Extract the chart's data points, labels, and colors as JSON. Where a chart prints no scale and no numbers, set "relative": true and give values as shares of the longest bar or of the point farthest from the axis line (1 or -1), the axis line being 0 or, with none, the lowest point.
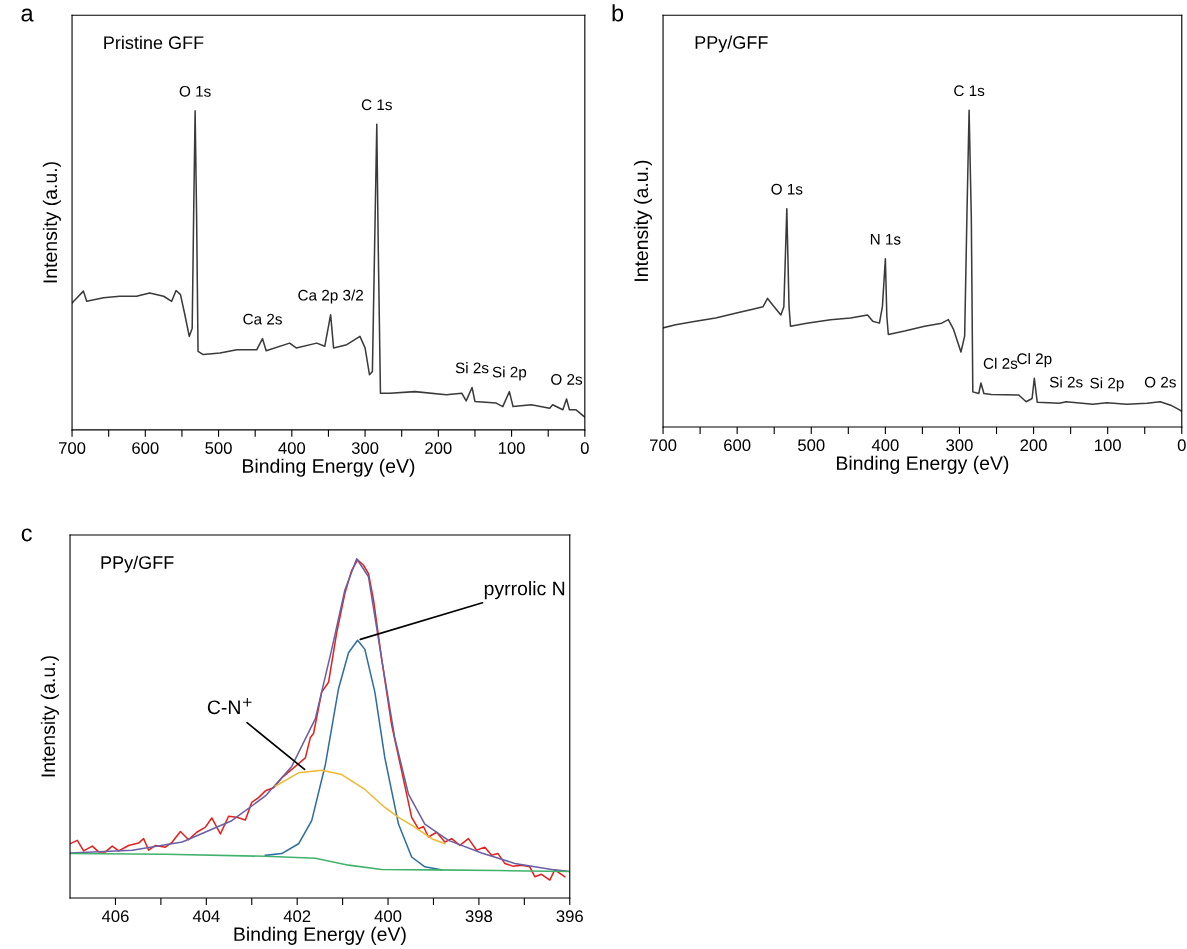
{
  "chart_data": [
    {
      "type": "line",
      "title": "a",
      "subtitle": "Pristine GFF",
      "xlabel": "Binding Energy (eV)",
      "ylabel": "Intensity (a.u.)",
      "relative": true,
      "xlim": [
        700,
        0
      ],
      "xticks": [
        700,
        {
          "value": 650,
          "label": null
        },
        600,
        {
          "value": 550,
          "label": null
        },
        500,
        {
          "value": 450,
          "label": null
        },
        400,
        {
          "value": 350,
          "label": null
        },
        300,
        {
          "value": 250,
          "label": null
        },
        200,
        {
          "value": 150,
          "label": null
        },
        100,
        {
          "value": 50,
          "label": null
        },
        0
      ],
      "tick_labels": "x",
      "series": [
        {
          "color": "#3a3a3a",
          "x": [
            700,
            684.5,
            680,
            657,
            635,
            612,
            594,
            575,
            564,
            558,
            552,
            546,
            540,
            536,
            534,
            532,
            530,
            528,
            521,
            498,
            475,
            448,
            440,
            435,
            403,
            394,
            366,
            355,
            347,
            343,
            325,
            307,
            300,
            294,
            290,
            287,
            284,
            282,
            279,
            266,
            232,
            189,
            168,
            162,
            154,
            150,
            121,
            112,
            103,
            98,
            73,
            48,
            44,
            30,
            25,
            21,
            12,
            0
          ],
          "values": [
            0.398,
            0.435,
            0.403,
            0.414,
            0.419,
            0.419,
            0.429,
            0.419,
            0.403,
            0.437,
            0.424,
            0.361,
            0.293,
            0.319,
            0.675,
            1.0,
            0.675,
            0.246,
            0.236,
            0.241,
            0.251,
            0.251,
            0.286,
            0.248,
            0.272,
            0.257,
            0.272,
            0.262,
            0.361,
            0.257,
            0.267,
            0.293,
            0.257,
            0.173,
            0.183,
            0.571,
            0.958,
            0.571,
            0.115,
            0.115,
            0.12,
            0.11,
            0.115,
            0.091,
            0.133,
            0.089,
            0.084,
            0.073,
            0.12,
            0.073,
            0.079,
            0.068,
            0.079,
            0.063,
            0.097,
            0.063,
            0.063,
            0.04
          ]
        }
      ],
      "annotations": [
        {
          "text": "O 1s",
          "x": 532,
          "y": 1.0
        },
        {
          "text": "Ca 2s",
          "x": 440,
          "y": 0.286
        },
        {
          "text": "Ca 2p 3/2",
          "x": 347,
          "y": 0.361
        },
        {
          "text": "C 1s",
          "x": 284,
          "y": 0.958
        },
        {
          "text": "Si 2s",
          "x": 154,
          "y": 0.133
        },
        {
          "text": "Si 2p",
          "x": 103,
          "y": 0.12
        },
        {
          "text": "O 2s",
          "x": 25,
          "y": 0.097
        }
      ]
    },
    {
      "type": "line",
      "title": "b",
      "subtitle": "PPy/GFF",
      "xlabel": "Binding Energy (eV)",
      "ylabel": "Intensity (a.u.)",
      "relative": true,
      "xlim": [
        700,
        0
      ],
      "xticks": [
        700,
        {
          "value": 650,
          "label": null
        },
        600,
        {
          "value": 550,
          "label": null
        },
        500,
        {
          "value": 450,
          "label": null
        },
        400,
        {
          "value": 350,
          "label": null
        },
        300,
        {
          "value": 250,
          "label": null
        },
        200,
        {
          "value": 150,
          "label": null
        },
        100,
        {
          "value": 50,
          "label": null
        },
        0
      ],
      "tick_labels": "x",
      "series": [
        {
          "color": "#3a3a3a",
          "x": [
            700,
            683,
            656,
            629,
            601,
            579,
            565,
            559,
            552,
            541,
            537,
            533,
            530,
            528,
            506,
            474,
            447,
            424,
            417,
            408,
            404,
            400,
            398,
            396,
            374,
            347,
            324,
            315,
            308,
            298,
            293,
            290,
            287,
            284,
            282,
            274,
            271,
            267,
            257,
            220,
            210,
            202,
            199,
            195,
            165,
            156,
            120,
            101,
            74,
            47,
            29,
            15,
            3,
            0
          ],
          "values": [
            0.313,
            0.323,
            0.334,
            0.344,
            0.36,
            0.372,
            0.38,
            0.406,
            0.385,
            0.354,
            0.38,
            0.689,
            0.38,
            0.318,
            0.328,
            0.339,
            0.344,
            0.354,
            0.334,
            0.328,
            0.38,
            0.531,
            0.349,
            0.292,
            0.303,
            0.318,
            0.328,
            0.339,
            0.308,
            0.237,
            0.287,
            0.66,
            1.0,
            0.66,
            0.111,
            0.106,
            0.139,
            0.106,
            0.103,
            0.101,
            0.08,
            0.09,
            0.154,
            0.078,
            0.075,
            0.08,
            0.072,
            0.077,
            0.072,
            0.075,
            0.08,
            0.069,
            0.054,
            0.049
          ]
        }
      ],
      "annotations": [
        {
          "text": "O 1s",
          "x": 533,
          "y": 0.689
        },
        {
          "text": "N 1s",
          "x": 400,
          "y": 0.531
        },
        {
          "text": "C 1s",
          "x": 287,
          "y": 1.0
        },
        {
          "text": "Cl 2s",
          "x": 271,
          "y": 0.139
        },
        {
          "text": "Cl 2p",
          "x": 199,
          "y": 0.154
        },
        {
          "text": "Si 2s",
          "x": 156,
          "y": 0.08
        },
        {
          "text": "Si 2p",
          "x": 101,
          "y": 0.077
        },
        {
          "text": "O 2s",
          "x": 29,
          "y": 0.08
        }
      ]
    },
    {
      "type": "line",
      "title": "c",
      "subtitle": "PPy/GFF",
      "xlabel": "Binding Energy (eV)",
      "ylabel": "Intensity (a.u.)",
      "relative": true,
      "xlim": [
        407,
        396
      ],
      "xticks": [
        406,
        {
          "value": 405,
          "label": null
        },
        404,
        {
          "value": 403,
          "label": null
        },
        402,
        {
          "value": 401,
          "label": null
        },
        400,
        {
          "value": 399,
          "label": null
        },
        398,
        {
          "value": 397,
          "label": null
        },
        396
      ],
      "tick_labels": "x",
      "series": [
        {
          "color": "#e3221c",
          "x": [
            407.0,
            406.84,
            406.7,
            406.51,
            406.37,
            406.22,
            406.07,
            405.93,
            405.71,
            405.49,
            405.38,
            405.27,
            405.12,
            404.9,
            404.75,
            404.57,
            404.39,
            404.21,
            404.02,
            403.88,
            403.69,
            403.51,
            403.33,
            403.14,
            403.0,
            402.85,
            402.7,
            402.52,
            402.34,
            402.04,
            401.82,
            401.71,
            401.64,
            401.46,
            401.31,
            401.13,
            400.95,
            400.8,
            400.67,
            400.54,
            400.43,
            400.32,
            400.14,
            399.92,
            399.7,
            399.48,
            399.33,
            399.22,
            399.11,
            398.93,
            398.75,
            398.6,
            398.42,
            398.23,
            398.05,
            397.87,
            397.72,
            397.58,
            397.43,
            397.25,
            397.06,
            396.88,
            396.77,
            396.62,
            396.44,
            396.33,
            396.11
          ],
          "values": [
            0.16,
            0.17,
            0.139,
            0.153,
            0.136,
            0.136,
            0.153,
            0.139,
            0.155,
            0.162,
            0.175,
            0.141,
            0.155,
            0.15,
            0.165,
            0.196,
            0.172,
            0.194,
            0.209,
            0.236,
            0.189,
            0.241,
            0.238,
            0.23,
            0.282,
            0.296,
            0.316,
            0.325,
            0.354,
            0.388,
            0.413,
            0.473,
            0.485,
            0.607,
            0.636,
            0.782,
            0.898,
            0.966,
            0.997,
            0.981,
            0.956,
            0.879,
            0.704,
            0.51,
            0.374,
            0.238,
            0.204,
            0.211,
            0.18,
            0.194,
            0.165,
            0.175,
            0.155,
            0.175,
            0.141,
            0.15,
            0.126,
            0.131,
            0.102,
            0.094,
            0.097,
            0.092,
            0.063,
            0.07,
            0.053,
            0.083,
            0.063
          ]
        },
        {
          "color": "#6a5fa5",
          "x": [
            407,
            405.63,
            404.53,
            403.44,
            402.7,
            402.12,
            401.6,
            401.24,
            400.95,
            400.69,
            400.43,
            400.14,
            399.85,
            399.55,
            399.19,
            398.67,
            397.94,
            397.21,
            396.33,
            396
          ],
          "values": [
            0.133,
            0.141,
            0.165,
            0.228,
            0.301,
            0.388,
            0.529,
            0.733,
            0.908,
            1.0,
            0.947,
            0.704,
            0.471,
            0.306,
            0.218,
            0.17,
            0.133,
            0.102,
            0.083,
            0.078
          ]
        },
        {
          "color": "#2e6e9e",
          "x": [
            402.7,
            402.34,
            401.97,
            401.68,
            401.38,
            401.09,
            400.87,
            400.67,
            400.51,
            400.29,
            400.07,
            399.77,
            399.48,
            399.19,
            398.82
          ],
          "values": [
            0.126,
            0.131,
            0.16,
            0.228,
            0.393,
            0.617,
            0.723,
            0.76,
            0.733,
            0.607,
            0.413,
            0.218,
            0.121,
            0.092,
            0.083
          ]
        },
        {
          "color": "#f2b830",
          "x": [
            402.48,
            401.97,
            401.46,
            401.02,
            400.51,
            400.07,
            399.77,
            399.41,
            399.04,
            398.75
          ],
          "values": [
            0.33,
            0.369,
            0.377,
            0.364,
            0.32,
            0.267,
            0.238,
            0.209,
            0.175,
            0.16
          ]
        },
        {
          "color": "#40b26b",
          "x": [
            407,
            404.9,
            402.7,
            401.6,
            400.87,
            400.14,
            399.04,
            397.58,
            396
          ],
          "values": [
            0.131,
            0.129,
            0.123,
            0.117,
            0.097,
            0.084,
            0.083,
            0.081,
            0.078
          ]
        }
      ],
      "annotations": [
        {
          "text": "pyrrolic N",
          "x": 400.67,
          "y": 0.76
        },
        {
          "text": "C-N$^{+}$",
          "x": 401.79,
          "y": 0.374
        }
      ]
    }
  ]
}
